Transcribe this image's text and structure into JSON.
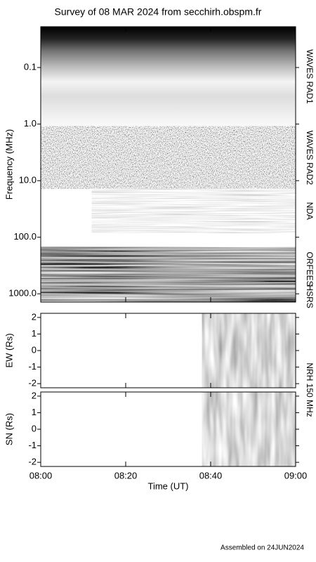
{
  "title": "Survey of 08 MAR 2024 from secchirh.obspm.fr",
  "footer": "Assembled on 24JUN2024",
  "instrument": "NRH 150 MHz",
  "chart_data": [
    {
      "type": "spectrogram",
      "ylabel": "Frequency (MHz)",
      "log_y": true,
      "ylim": [
        0.019,
        1400
      ],
      "yticks": [
        0.1,
        {
          "value": 1,
          "label": "1.0"
        },
        {
          "value": 10,
          "label": "10.0"
        },
        {
          "value": 100,
          "label": "100.0"
        },
        {
          "value": 1000,
          "label": "1000.0"
        }
      ],
      "xlim": [
        "08:00",
        "09:00"
      ],
      "xticks": [
        "08:00",
        "08:20",
        "08:40",
        "09:00"
      ],
      "bands": [
        {
          "name": "WAVES RAD1",
          "ylim": [
            0.019,
            1.1
          ],
          "start": "08:00"
        },
        {
          "name": "WAVES RAD2",
          "ylim": [
            1.1,
            14
          ],
          "start": "08:00"
        },
        {
          "name": "NDA",
          "ylim": [
            14,
            84
          ],
          "start": "08:12"
        },
        {
          "name": "ORFEES",
          "ylim": [
            150,
            890
          ],
          "start": "08:00"
        },
        {
          "name": "HSRS",
          "ylim": [
            890,
            1400
          ],
          "start": "08:00"
        }
      ]
    },
    {
      "type": "image",
      "ylabel": "EW (Rs)",
      "ylim": [
        -2.25,
        2.25
      ],
      "yticks": [
        -2,
        -1,
        0,
        1,
        2
      ],
      "xlim": [
        "08:00",
        "09:00"
      ],
      "xticks": [
        "08:00",
        "08:20",
        "08:40",
        "09:00"
      ],
      "start": "08:38"
    },
    {
      "type": "image",
      "ylabel": "SN (Rs)",
      "ylim": [
        -2.25,
        2.25
      ],
      "yticks": [
        -2,
        -1,
        0,
        1,
        2
      ],
      "xlim": [
        "08:00",
        "09:00"
      ],
      "xticks": [
        "08:00",
        "08:20",
        "08:40",
        "09:00"
      ],
      "start": "08:38",
      "xlabel": "Time (UT)"
    }
  ]
}
